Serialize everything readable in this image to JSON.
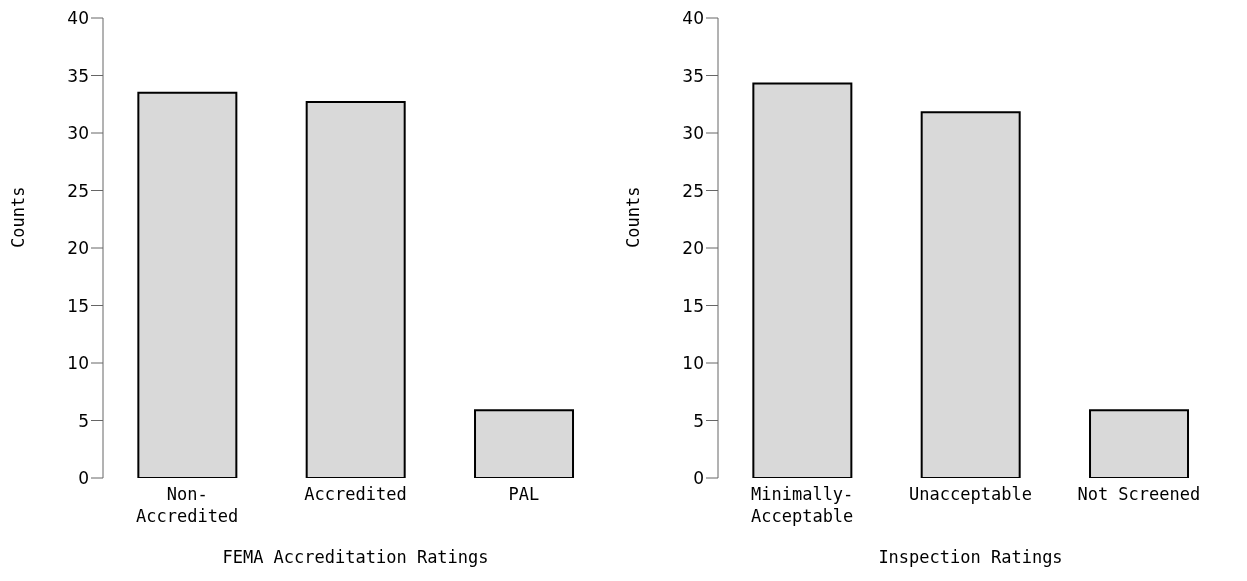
{
  "chart_data": [
    {
      "type": "bar",
      "xlabel": "FEMA Accreditation Ratings",
      "ylabel": "Counts",
      "categories": [
        "Non-Accredited",
        "Accredited",
        "PAL"
      ],
      "values": [
        33.5,
        32.7,
        5.9
      ],
      "color": "#d9d9d9",
      "ylim": [
        0,
        40
      ],
      "yticks": [
        0,
        5,
        10,
        15,
        20,
        25,
        30,
        35,
        40
      ]
    },
    {
      "type": "bar",
      "xlabel": "Inspection Ratings",
      "ylabel": "Counts",
      "categories": [
        "Minimally-Acceptable",
        "Unacceptable",
        "Not Screened"
      ],
      "values": [
        34.3,
        31.8,
        5.9
      ],
      "color": "#d9d9d9",
      "ylim": [
        0,
        40
      ],
      "yticks": [
        0,
        5,
        10,
        15,
        20,
        25,
        30,
        35,
        40
      ]
    }
  ]
}
